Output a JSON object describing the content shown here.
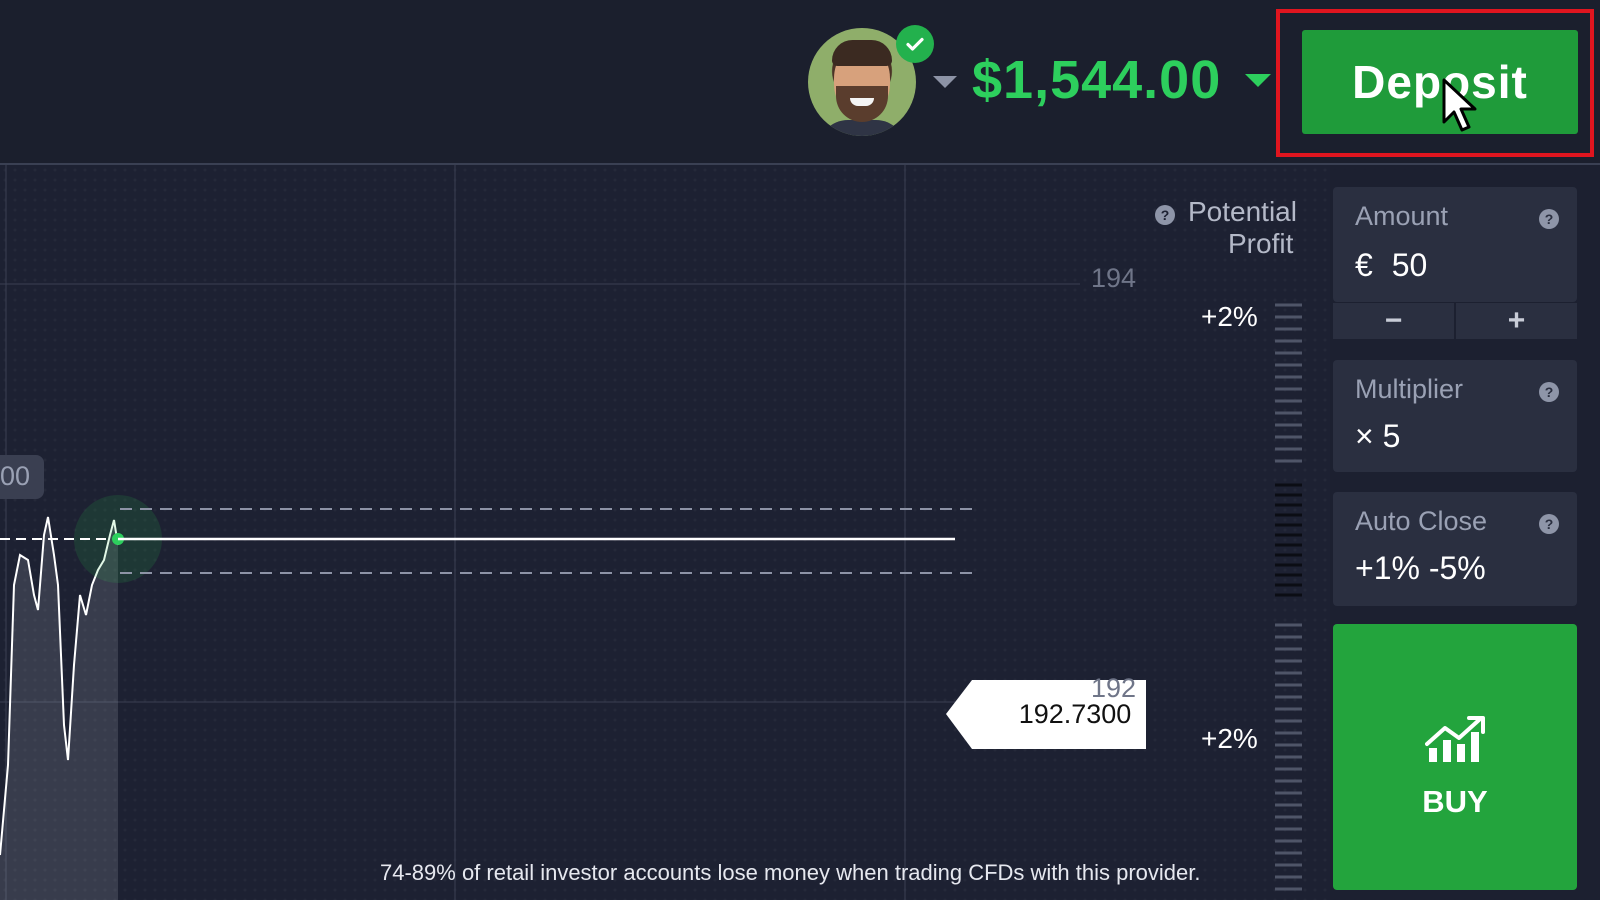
{
  "header": {
    "balance": "$1,544.00",
    "deposit_label": "Deposit"
  },
  "chart": {
    "potential_profit_line1": "Potential",
    "potential_profit_line2": "Profit",
    "price_tick_upper": "194",
    "price_tick_lower": "192",
    "profit_upper": "+2%",
    "profit_lower": "+2%",
    "current_price": "192.7300",
    "left_tag": "00"
  },
  "trade_panel": {
    "amount_label": "Amount",
    "amount_currency": "€",
    "amount_value": "50",
    "minus_label": "−",
    "plus_label": "+",
    "multiplier_label": "Multiplier",
    "multiplier_value": "× 5",
    "auto_close_label": "Auto Close",
    "auto_close_value": "+1% -5%",
    "buy_label": "BUY"
  },
  "disclaimer": "74-89% of retail investor accounts lose money when trading CFDs with this provider.",
  "colors": {
    "balance_green": "#2dcf5d",
    "deposit_green": "#1f9b3a",
    "buy_green": "#23a43d",
    "highlight_red": "#e0151f",
    "background": "#1c2030"
  },
  "icons": {
    "verified": "check-circle-icon",
    "balance_caret": "chevron-down-icon",
    "avatar_caret": "chevron-down-icon",
    "help": "question-circle-icon",
    "buy": "trend-up-chart-icon",
    "cursor": "mouse-pointer-icon"
  }
}
